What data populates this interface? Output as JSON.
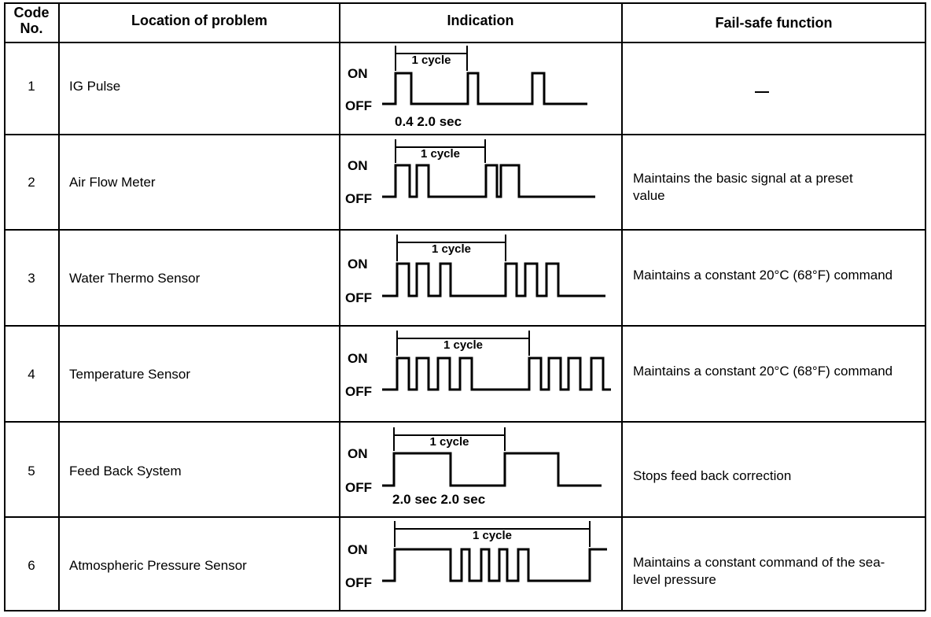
{
  "header": {
    "code_line1": "Code",
    "code_line2": "No.",
    "location": "Location of problem",
    "indication": "Indication",
    "failsafe": "Fail-safe function"
  },
  "indication_labels": {
    "on": "ON",
    "off": "OFF",
    "cycle": "1 cycle"
  },
  "rows": [
    {
      "code": "1",
      "location": "IG Pulse",
      "failsafe": "—",
      "timing": "0.4 2.0 sec"
    },
    {
      "code": "2",
      "location": "Air Flow Meter",
      "failsafe": "Maintains the basic signal at a preset value"
    },
    {
      "code": "3",
      "location": "Water Thermo Sensor",
      "failsafe": "Maintains a constant 20°C (68°F) command"
    },
    {
      "code": "4",
      "location": "Temperature Sensor",
      "failsafe": "Maintains a constant 20°C (68°F) command"
    },
    {
      "code": "5",
      "location": "Feed Back System",
      "failsafe": "Stops feed back correction",
      "timing": "2.0 sec 2.0 sec"
    },
    {
      "code": "6",
      "location": "Atmospheric Pressure Sensor",
      "failsafe": "Maintains a constant command of the sea-level pressure"
    }
  ]
}
